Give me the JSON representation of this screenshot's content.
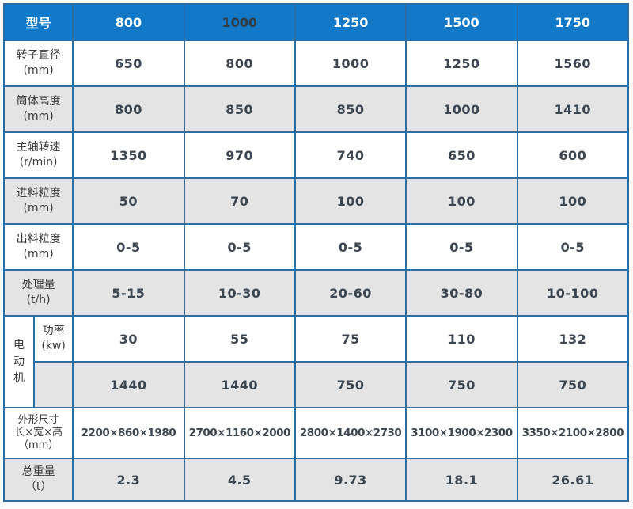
{
  "colors": {
    "header_bg": "#1179c8",
    "header_text": "#ffffff",
    "header_text_dark_col2": "#323a41",
    "border": "#2a6da3",
    "alt_row_bg": "#e4e4e4",
    "value_text": "#3c4650"
  },
  "table": {
    "header": {
      "label": "型号",
      "models": [
        "800",
        "1000",
        "1250",
        "1500",
        "1750"
      ]
    },
    "motor_group_label": "电动机",
    "rows": [
      {
        "label": "转子直径",
        "unit": "(mm)",
        "values": [
          "650",
          "800",
          "1000",
          "1250",
          "1560"
        ]
      },
      {
        "label": "筒体高度",
        "unit": "(mm)",
        "values": [
          "800",
          "850",
          "850",
          "1000",
          "1410"
        ]
      },
      {
        "label": "主轴转速",
        "unit": "(r/min)",
        "values": [
          "1350",
          "970",
          "740",
          "650",
          "600"
        ]
      },
      {
        "label": "进料粒度",
        "unit": "(mm)",
        "values": [
          "50",
          "70",
          "100",
          "100",
          "100"
        ]
      },
      {
        "label": "出料粒度",
        "unit": "(mm)",
        "values": [
          "0-5",
          "0-5",
          "0-5",
          "0-5",
          "0-5"
        ]
      },
      {
        "label": "处理量",
        "unit": "(t/h)",
        "values": [
          "5-15",
          "10-30",
          "20-60",
          "30-80",
          "10-100"
        ]
      },
      {
        "label": "功率",
        "unit": "(kw)",
        "values": [
          "30",
          "55",
          "75",
          "110",
          "132"
        ]
      },
      {
        "label": "",
        "unit": "",
        "values": [
          "1440",
          "1440",
          "750",
          "750",
          "750"
        ]
      },
      {
        "label": "外形尺寸",
        "label2": "长×宽×高",
        "unit": "（mm）",
        "values": [
          "2200×860×1980",
          "2700×1160×2000",
          "2800×1400×2730",
          "3100×1900×2300",
          "3350×2100×2800"
        ]
      },
      {
        "label": "总重量",
        "unit": "（t）",
        "values": [
          "2.3",
          "4.5",
          "9.73",
          "18.1",
          "26.61"
        ]
      }
    ]
  }
}
